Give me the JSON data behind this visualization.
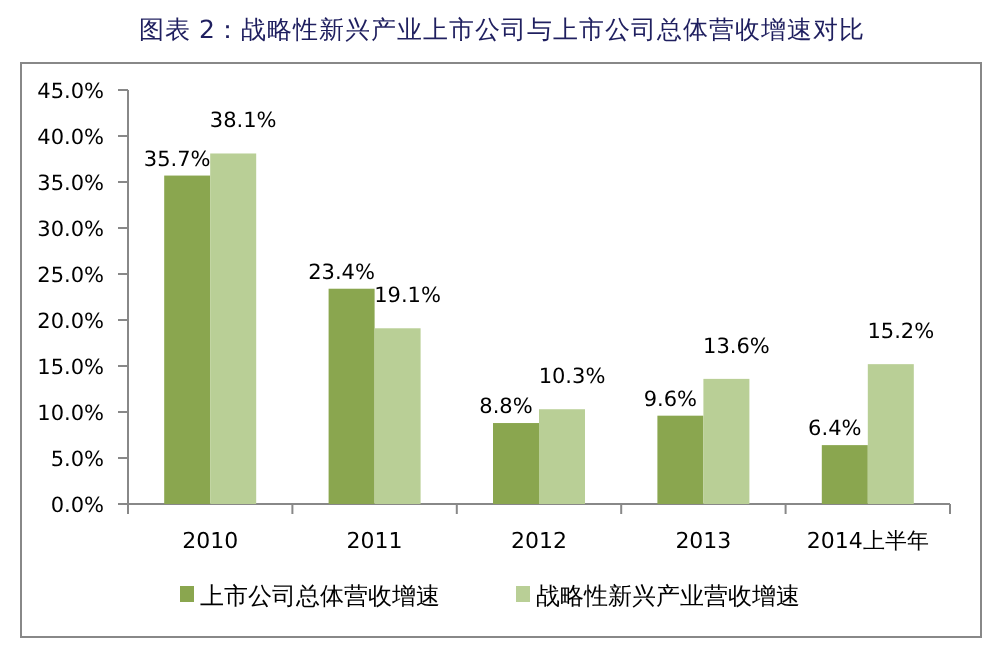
{
  "chart_data": {
    "type": "bar",
    "title": "图表 2：战略性新兴产业上市公司与上市公司总体营收增速对比",
    "categories": [
      "2010",
      "2011",
      "2012",
      "2013",
      "2014上半年"
    ],
    "series": [
      {
        "name": "上市公司总体营收增速",
        "color": "#8aa64f",
        "values": [
          35.7,
          23.4,
          8.8,
          9.6,
          6.4
        ],
        "value_labels": [
          "35.7%",
          "23.4%",
          "8.8%",
          "9.6%",
          "6.4%"
        ]
      },
      {
        "name": "战略性新兴产业营收增速",
        "color": "#b9cf96",
        "values": [
          38.1,
          19.1,
          10.3,
          13.6,
          15.2
        ],
        "value_labels": [
          "38.1%",
          "19.1%",
          "10.3%",
          "13.6%",
          "15.2%"
        ]
      }
    ],
    "ylim": [
      0,
      45
    ],
    "yticks": [
      {
        "value": 0,
        "label": "0.0%"
      },
      {
        "value": 5,
        "label": "5.0%"
      },
      {
        "value": 10,
        "label": "10.0%"
      },
      {
        "value": 15,
        "label": "15.0%"
      },
      {
        "value": 20,
        "label": "20.0%"
      },
      {
        "value": 25,
        "label": "25.0%"
      },
      {
        "value": 30,
        "label": "30.0%"
      },
      {
        "value": 35,
        "label": "35.0%"
      },
      {
        "value": 40,
        "label": "40.0%"
      },
      {
        "value": 45,
        "label": "45.0%"
      }
    ],
    "legend": "bottom"
  }
}
